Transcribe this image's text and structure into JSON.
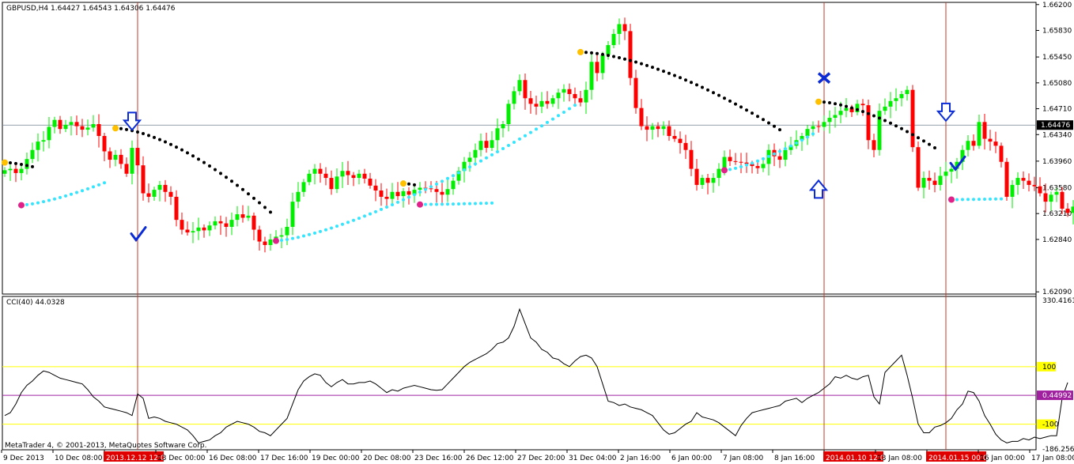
{
  "price_header": "GBPUSD,H4  1.64427 1.64543 1.64306 1.64476",
  "cci_header": "CCI(40) 44.0328",
  "copyright": "MetaTrader 4, © 2001-2013, MetaQuotes Software Corp.",
  "colors": {
    "bull": "#00ee00",
    "bear": "#ff0000",
    "sar_upper": "#000000",
    "sar_lower": "#33e6ff",
    "arrow": "#0a2bd6",
    "vline": "#c0392b",
    "level": "#ffff00",
    "zero_line": "#a020a0",
    "bid_line": "#708090"
  },
  "chart_data": [
    {
      "type": "candlestick",
      "title": "GBPUSD,H4",
      "ohlc_last": {
        "open": 1.64427,
        "high": 1.64543,
        "low": 1.64306,
        "close": 1.64476
      },
      "ylim": [
        1.6207,
        1.6622
      ],
      "price_ticks": [
        "1.66200",
        "1.65830",
        "1.65450",
        "1.65080",
        "1.64710",
        "1.64340",
        "1.63960",
        "1.63580",
        "1.63210",
        "1.62840",
        "1.62090"
      ],
      "current_price": "1.64476",
      "time_labels": [
        "9 Dec 2013",
        "10 Dec 08:00",
        "2013.12.12 12:00",
        "13 Dec 00:00",
        "16 Dec 08:00",
        "17 Dec 16:00",
        "19 Dec 00:00",
        "20 Dec 08:00",
        "23 Dec 16:00",
        "26 Dec 12:00",
        "27 Dec 20:00",
        "31 Dec 04:00",
        "2 Jan 16:00",
        "6 Jan 00:00",
        "7 Jan 08:00",
        "8 Jan 16:00",
        "2014.01.10 12:00",
        "13 Jan 08:00",
        "2014.01.15 00:00",
        "16 Jan 00:00",
        "17 Jan 08:00"
      ],
      "highlighted_times": [
        "2013.12.12 12:00",
        "2014.01.10 12:00",
        "2014.01.15 00:00"
      ],
      "closes": [
        1.6383,
        1.6385,
        1.6379,
        1.6385,
        1.6399,
        1.6412,
        1.6424,
        1.6426,
        1.6445,
        1.6455,
        1.6442,
        1.6448,
        1.6452,
        1.6446,
        1.6441,
        1.6444,
        1.6449,
        1.6432,
        1.641,
        1.6398,
        1.6405,
        1.6392,
        1.6378,
        1.6415,
        1.639,
        1.635,
        1.6345,
        1.6355,
        1.6362,
        1.6352,
        1.6345,
        1.6312,
        1.6298,
        1.6294,
        1.6296,
        1.6301,
        1.6297,
        1.6304,
        1.631,
        1.6307,
        1.6302,
        1.6312,
        1.632,
        1.6315,
        1.6318,
        1.6298,
        1.6281,
        1.6276,
        1.6284,
        1.6288,
        1.629,
        1.6302,
        1.6338,
        1.6352,
        1.6366,
        1.6378,
        1.6385,
        1.6378,
        1.6372,
        1.6356,
        1.6374,
        1.6382,
        1.6376,
        1.6372,
        1.6378,
        1.6371,
        1.6361,
        1.6354,
        1.6345,
        1.6342,
        1.6352,
        1.6346,
        1.6353,
        1.6348,
        1.6355,
        1.6358,
        1.6357,
        1.6356,
        1.6352,
        1.6348,
        1.6356,
        1.6368,
        1.6382,
        1.6395,
        1.6401,
        1.6412,
        1.6425,
        1.6415,
        1.6426,
        1.6443,
        1.6449,
        1.6478,
        1.6496,
        1.6512,
        1.6486,
        1.6478,
        1.6474,
        1.6482,
        1.6478,
        1.6486,
        1.6494,
        1.6499,
        1.6492,
        1.6486,
        1.648,
        1.6498,
        1.6538,
        1.6522,
        1.6548,
        1.6562,
        1.6578,
        1.6592,
        1.6582,
        1.6515,
        1.6472,
        1.6446,
        1.6441,
        1.6446,
        1.6442,
        1.6446,
        1.6432,
        1.6428,
        1.6422,
        1.6412,
        1.6385,
        1.6362,
        1.6372,
        1.6365,
        1.6372,
        1.6385,
        1.6402,
        1.6396,
        1.6395,
        1.6394,
        1.6392,
        1.6389,
        1.6386,
        1.6392,
        1.6412,
        1.6403,
        1.6398,
        1.6412,
        1.6418,
        1.6426,
        1.6432,
        1.6442,
        1.6446,
        1.6445,
        1.6452,
        1.6458,
        1.6462,
        1.6468,
        1.6472,
        1.6466,
        1.6478,
        1.6476,
        1.6426,
        1.6412,
        1.6468,
        1.6474,
        1.6482,
        1.6486,
        1.6492,
        1.6498,
        1.6416,
        1.6358,
        1.6372,
        1.6368,
        1.6362,
        1.6375,
        1.6381,
        1.6385,
        1.6395,
        1.6412,
        1.6425,
        1.6418,
        1.6452,
        1.6428,
        1.6424,
        1.6418,
        1.6395,
        1.6345,
        1.6362,
        1.6372,
        1.6368,
        1.6362,
        1.636,
        1.635,
        1.6338,
        1.6348,
        1.6352,
        1.6328,
        1.6322,
        1.6331,
        1.634,
        1.6418,
        1.644,
        1.6448
      ],
      "sar_upper_segments": [
        {
          "start": 0,
          "end": 5,
          "from": 1.6394,
          "to": 1.6388
        },
        {
          "start": 20,
          "end": 48,
          "from": 1.6443,
          "to": 1.6323
        },
        {
          "start": 72,
          "end": 74,
          "from": 1.6364,
          "to": 1.6362
        },
        {
          "start": 104,
          "end": 140,
          "from": 1.6552,
          "to": 1.6441
        },
        {
          "start": 147,
          "end": 168,
          "from": 1.6481,
          "to": 1.6415
        }
      ],
      "sar_lower_segments": [
        {
          "start": 3,
          "end": 18,
          "from": 1.6333,
          "to": 1.6365
        },
        {
          "start": 49,
          "end": 103,
          "from": 1.6282,
          "to": 1.6476
        },
        {
          "start": 75,
          "end": 88,
          "from": 1.6334,
          "to": 1.6336
        },
        {
          "start": 130,
          "end": 146,
          "from": 1.6383,
          "to": 1.6435
        },
        {
          "start": 171,
          "end": 180,
          "from": 1.6341,
          "to": 1.6342
        }
      ]
    },
    {
      "type": "line",
      "title": "CCI(40) 44.0328",
      "ylim": [
        -186.2568,
        330.4161
      ],
      "tick_labels": [
        "330.4161",
        "100",
        "0.44992",
        "-100",
        "-186.2568"
      ],
      "levels": [
        100,
        -100
      ],
      "zero_value": 0.44992,
      "values": [
        -70,
        -60,
        -30,
        10,
        35,
        50,
        70,
        85,
        80,
        70,
        60,
        55,
        50,
        45,
        40,
        20,
        -5,
        -20,
        -40,
        -45,
        -50,
        -55,
        -60,
        -70,
        5,
        -10,
        -80,
        -75,
        -80,
        -90,
        -95,
        -100,
        -110,
        -120,
        -140,
        -165,
        -160,
        -155,
        -140,
        -130,
        -110,
        -100,
        -90,
        -95,
        -100,
        -110,
        -125,
        -130,
        -140,
        -120,
        -100,
        -80,
        -30,
        20,
        50,
        65,
        75,
        70,
        45,
        30,
        45,
        55,
        40,
        40,
        45,
        45,
        50,
        40,
        25,
        10,
        20,
        15,
        25,
        30,
        35,
        30,
        25,
        20,
        18,
        20,
        40,
        60,
        80,
        100,
        115,
        125,
        135,
        145,
        160,
        180,
        185,
        200,
        240,
        300,
        250,
        200,
        185,
        160,
        150,
        130,
        125,
        110,
        100,
        120,
        135,
        140,
        130,
        100,
        40,
        -20,
        -25,
        -35,
        -30,
        -40,
        -45,
        -50,
        -60,
        -70,
        -95,
        -120,
        -135,
        -130,
        -115,
        -100,
        -90,
        -60,
        -75,
        -80,
        -85,
        -95,
        -110,
        -125,
        -140,
        -105,
        -80,
        -60,
        -55,
        -50,
        -45,
        -40,
        -35,
        -20,
        -15,
        -10,
        -25,
        -10,
        0,
        10,
        25,
        40,
        65,
        60,
        70,
        60,
        55,
        65,
        70,
        -5,
        -30,
        80,
        100,
        120,
        140,
        70,
        -10,
        -100,
        -130,
        -130,
        -110,
        -105,
        -95,
        -80,
        -50,
        -30,
        15,
        10,
        -20,
        -70,
        -100,
        -135,
        -155,
        -165,
        -160,
        -160,
        -150,
        -155,
        -145,
        -150,
        -145,
        -140,
        -140,
        -10,
        45
      ]
    }
  ],
  "annotations": {
    "down_arrows": [
      {
        "bar": 23,
        "price": 1.6452
      },
      {
        "bar": 170,
        "price": 1.6465
      }
    ],
    "up_arrows": [
      {
        "bar": 147,
        "price": 1.6357
      }
    ],
    "cross": {
      "bar": 148,
      "price": 1.6515
    },
    "checkmarks": [
      {
        "bar": 24,
        "price": 1.629
      },
      {
        "bar": 172,
        "price": 1.6391
      }
    ],
    "vertical_line_bars": [
      24,
      148,
      170
    ]
  }
}
